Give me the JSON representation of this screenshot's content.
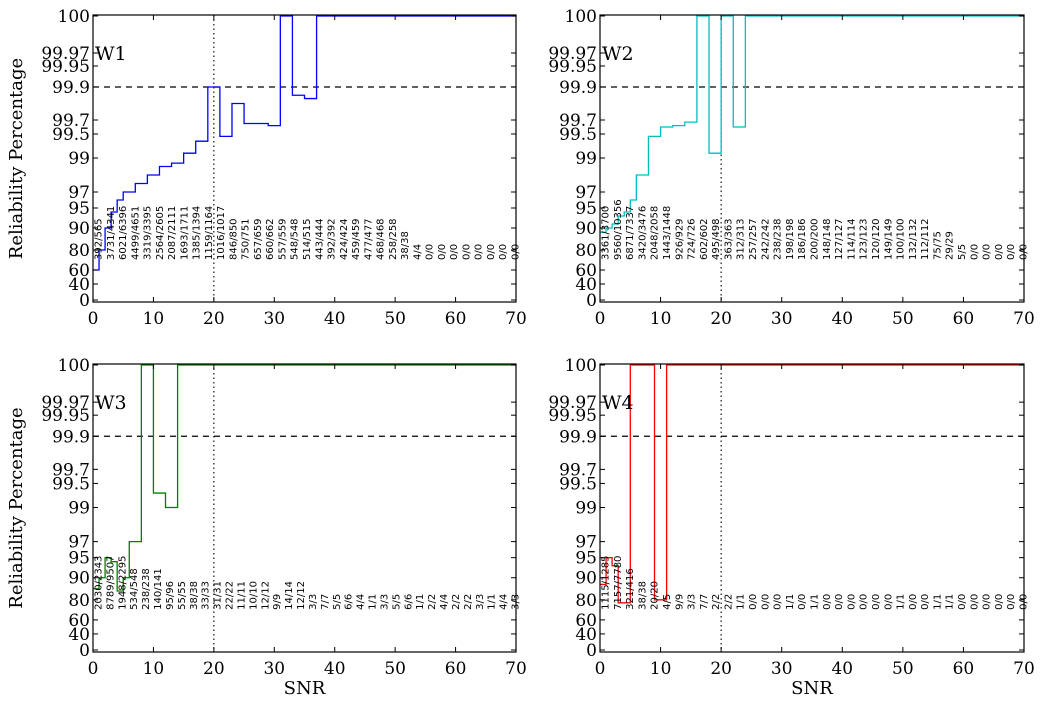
{
  "figure": {
    "xlabel": "SNR",
    "ylabel": "Reliability Percentage"
  },
  "chart_data": [
    {
      "type": "line",
      "title": "W1",
      "color": "#0000ff",
      "xlabel": "",
      "ylabel": "Reliability Percentage",
      "xlim": [
        0,
        70
      ],
      "ylim": [
        0,
        100
      ],
      "xticks": [
        "0",
        "10",
        "20",
        "30",
        "40",
        "50",
        "60",
        "70"
      ],
      "yticks": [
        "0",
        "40",
        "60",
        "80",
        "90",
        "95",
        "97",
        "99",
        "99.5",
        "99.7",
        "99.9",
        "99.95",
        "99.97",
        "100"
      ],
      "threshold": 99.9,
      "reference_x": 20,
      "x": [
        0,
        1,
        2,
        3,
        4,
        5,
        6,
        7,
        8,
        9,
        10,
        11,
        12,
        13,
        14,
        15,
        16,
        17,
        18,
        19,
        20,
        21,
        22,
        23,
        24,
        25,
        26,
        27,
        28,
        29,
        30,
        31,
        32,
        33,
        34,
        35,
        36,
        37,
        38,
        39,
        40,
        41,
        42,
        43,
        44,
        45,
        46,
        47,
        48,
        49,
        50,
        51,
        52,
        53,
        54,
        55,
        56,
        57,
        58,
        59,
        60,
        61,
        62,
        63,
        64,
        65,
        66,
        67,
        68,
        69,
        70
      ],
      "values": [
        60,
        80,
        90,
        94,
        96,
        97,
        97,
        97.5,
        97.5,
        98,
        98,
        98.5,
        98.5,
        98.7,
        98.7,
        99.1,
        99.1,
        99.35,
        99.35,
        99.9,
        99.9,
        99.45,
        99.45,
        99.8,
        99.8,
        99.65,
        99.65,
        99.65,
        99.65,
        99.62,
        99.62,
        100,
        100,
        99.85,
        99.85,
        99.83,
        99.83,
        100,
        100,
        100,
        100,
        100,
        100,
        100,
        100,
        100,
        100,
        100,
        100,
        100,
        100,
        100,
        100,
        100,
        100,
        100,
        100,
        100,
        100,
        100,
        100,
        100,
        100,
        100,
        100,
        100,
        100,
        100,
        100,
        100,
        100
      ],
      "count_labels": [
        "392/565",
        "3731/4341",
        "6021/6396",
        "4499/4651",
        "3319/3395",
        "2564/2605",
        "2087/2111",
        "1693/1711",
        "1385/1394",
        "1159/1164",
        "1016/1017",
        "846/850",
        "750/751",
        "657/659",
        "660/662",
        "557/559",
        "548/548",
        "514/515",
        "443/444",
        "392/392",
        "424/424",
        "459/459",
        "477/477",
        "468/468",
        "258/258",
        "38/38",
        "4/4",
        "0/0",
        "0/0",
        "0/0",
        "0/0",
        "0/0",
        "0/0",
        "0/0",
        "0/0"
      ]
    },
    {
      "type": "line",
      "title": "W2",
      "color": "#00bfbf",
      "xlabel": "",
      "ylabel": "",
      "xlim": [
        0,
        70
      ],
      "ylim": [
        0,
        100
      ],
      "xticks": [
        "0",
        "10",
        "20",
        "30",
        "40",
        "50",
        "60",
        "70"
      ],
      "yticks": [
        "0",
        "40",
        "60",
        "80",
        "90",
        "95",
        "97",
        "99",
        "99.5",
        "99.7",
        "99.9",
        "99.95",
        "99.97",
        "100"
      ],
      "threshold": 99.9,
      "reference_x": 20,
      "x": [
        0,
        1,
        2,
        3,
        4,
        5,
        6,
        7,
        8,
        9,
        10,
        11,
        12,
        13,
        14,
        15,
        16,
        17,
        18,
        19,
        20,
        21,
        22,
        23,
        24,
        25,
        26,
        27,
        28,
        29,
        30,
        31,
        32,
        33,
        34,
        35,
        36,
        37,
        38,
        39,
        40,
        41,
        42,
        43,
        44,
        45,
        46,
        47,
        48,
        49,
        50,
        51,
        52,
        53,
        54,
        55,
        56,
        57,
        58,
        59,
        60,
        61,
        62,
        63,
        64,
        65,
        66,
        67,
        68,
        69,
        70
      ],
      "values": [
        88,
        90,
        91,
        93,
        94,
        96,
        98,
        98,
        99.45,
        99.45,
        99.6,
        99.6,
        99.62,
        99.62,
        99.67,
        99.67,
        100,
        100,
        99.1,
        99.1,
        100,
        100,
        99.6,
        99.6,
        100,
        100,
        100,
        100,
        100,
        100,
        100,
        100,
        100,
        100,
        100,
        100,
        100,
        100,
        100,
        100,
        100,
        100,
        100,
        100,
        100,
        100,
        100,
        100,
        100,
        100,
        100,
        100,
        100,
        100,
        100,
        100,
        100,
        100,
        100,
        100,
        100,
        100,
        100,
        100,
        100,
        100,
        100,
        100,
        100,
        100,
        100
      ],
      "count_labels": [
        "3361/3700",
        "9560/10356",
        "6871/7337",
        "3420/3476",
        "2048/2058",
        "1443/1448",
        "926/929",
        "724/726",
        "602/602",
        "495/498",
        "363/363",
        "312/313",
        "257/257",
        "242/242",
        "238/238",
        "198/198",
        "186/186",
        "200/200",
        "148/148",
        "127/127",
        "114/114",
        "123/123",
        "120/120",
        "149/149",
        "100/100",
        "132/132",
        "112/112",
        "75/75",
        "29/29",
        "5/5",
        "0/0",
        "0/0",
        "0/0",
        "0/0",
        "0/0"
      ]
    },
    {
      "type": "line",
      "title": "W3",
      "color": "#008000",
      "xlabel": "SNR",
      "ylabel": "Reliability Percentage",
      "xlim": [
        0,
        70
      ],
      "ylim": [
        0,
        100
      ],
      "xticks": [
        "0",
        "10",
        "20",
        "30",
        "40",
        "50",
        "60",
        "70"
      ],
      "yticks": [
        "0",
        "40",
        "60",
        "80",
        "90",
        "95",
        "97",
        "99",
        "99.5",
        "99.7",
        "99.9",
        "99.95",
        "99.97",
        "100"
      ],
      "threshold": 99.9,
      "reference_x": 20,
      "x": [
        0,
        1,
        2,
        3,
        4,
        5,
        6,
        7,
        8,
        9,
        10,
        11,
        12,
        13,
        14,
        15,
        16,
        17,
        18,
        19,
        20,
        21,
        22,
        23,
        24,
        25,
        26,
        27,
        28,
        29,
        30,
        31,
        32,
        33,
        34,
        35,
        36,
        37,
        38,
        39,
        40,
        41,
        42,
        43,
        44,
        45,
        46,
        47,
        48,
        49,
        50,
        51,
        52,
        53,
        54,
        55,
        56,
        57,
        58,
        59,
        60,
        61,
        62,
        63,
        64,
        65,
        66,
        67,
        68,
        69,
        70
      ],
      "values": [
        85,
        90,
        95,
        94,
        84,
        90,
        97,
        97,
        100,
        100,
        99.3,
        99.3,
        99,
        99,
        100,
        100,
        100,
        100,
        100,
        100,
        100,
        100,
        100,
        100,
        100,
        100,
        100,
        100,
        100,
        100,
        100,
        100,
        100,
        100,
        100,
        100,
        100,
        100,
        100,
        100,
        100,
        100,
        100,
        100,
        100,
        100,
        100,
        100,
        100,
        100,
        100,
        100,
        100,
        100,
        100,
        100,
        100,
        100,
        100,
        100,
        100,
        100,
        100,
        100,
        100,
        100,
        100,
        100,
        100,
        100,
        100
      ],
      "count_labels": [
        "2030/2343",
        "8789/9507",
        "1948/2295",
        "534/548",
        "238/238",
        "140/141",
        "95/96",
        "55/55",
        "38/38",
        "33/33",
        "31/31",
        "22/22",
        "11/11",
        "10/10",
        "12/12",
        "9/9",
        "14/14",
        "12/12",
        "3/3",
        "7/7",
        "5/5",
        "6/6",
        "4/4",
        "1/1",
        "3/3",
        "5/5",
        "6/6",
        "1/1",
        "2/2",
        "4/4",
        "2/2",
        "2/2",
        "3/3",
        "1/1",
        "4/4",
        "3/3"
      ]
    },
    {
      "type": "line",
      "title": "W4",
      "color": "#ff0000",
      "xlabel": "SNR",
      "ylabel": "",
      "xlim": [
        0,
        70
      ],
      "ylim": [
        0,
        100
      ],
      "xticks": [
        "0",
        "10",
        "20",
        "30",
        "40",
        "50",
        "60",
        "70"
      ],
      "yticks": [
        "0",
        "40",
        "60",
        "80",
        "90",
        "95",
        "97",
        "99",
        "99.5",
        "99.7",
        "99.9",
        "99.95",
        "99.97",
        "100"
      ],
      "threshold": 99.9,
      "reference_x": 20,
      "x": [
        0,
        1,
        2,
        3,
        4,
        5,
        6,
        7,
        8,
        9,
        10,
        11,
        12,
        13,
        14,
        15,
        16,
        17,
        18,
        19,
        20,
        21,
        22,
        23,
        24,
        25,
        26,
        27,
        28,
        29,
        30,
        31,
        32,
        33,
        34,
        35,
        36,
        37,
        38,
        39,
        40,
        41,
        42,
        43,
        44,
        45,
        46,
        47,
        48,
        49,
        50,
        51,
        52,
        53,
        54,
        55,
        56,
        57,
        58,
        59,
        60,
        61,
        62,
        63,
        64,
        65,
        66,
        67,
        68,
        69,
        70
      ],
      "values": [
        87,
        95,
        93,
        77,
        77,
        100,
        100,
        100,
        100,
        80,
        80,
        100,
        100,
        100,
        100,
        100,
        100,
        100,
        100,
        100,
        100,
        100,
        100,
        100,
        100,
        100,
        100,
        100,
        100,
        100,
        100,
        100,
        100,
        100,
        100,
        100,
        100,
        100,
        100,
        100,
        100,
        100,
        100,
        100,
        100,
        100,
        100,
        100,
        100,
        100,
        100,
        100,
        100,
        100,
        100,
        100,
        100,
        100,
        100,
        100,
        100,
        100,
        100,
        100,
        100,
        100,
        100,
        100,
        100,
        100,
        100
      ],
      "count_labels": [
        "1115/1285",
        "7157/7780",
        "321/416",
        "38/38",
        "20/20",
        "4/5",
        "9/9",
        "3/3",
        "7/7",
        "2/2",
        "2/2",
        "1/1",
        "0/0",
        "0/0",
        "0/0",
        "1/1",
        "0/0",
        "1/1",
        "0/0",
        "0/0",
        "0/0",
        "0/0",
        "0/0",
        "0/0",
        "1/1",
        "0/0",
        "0/0",
        "1/1",
        "1/1",
        "0/0",
        "0/0",
        "0/0",
        "0/0",
        "0/0",
        "0/0"
      ]
    }
  ]
}
